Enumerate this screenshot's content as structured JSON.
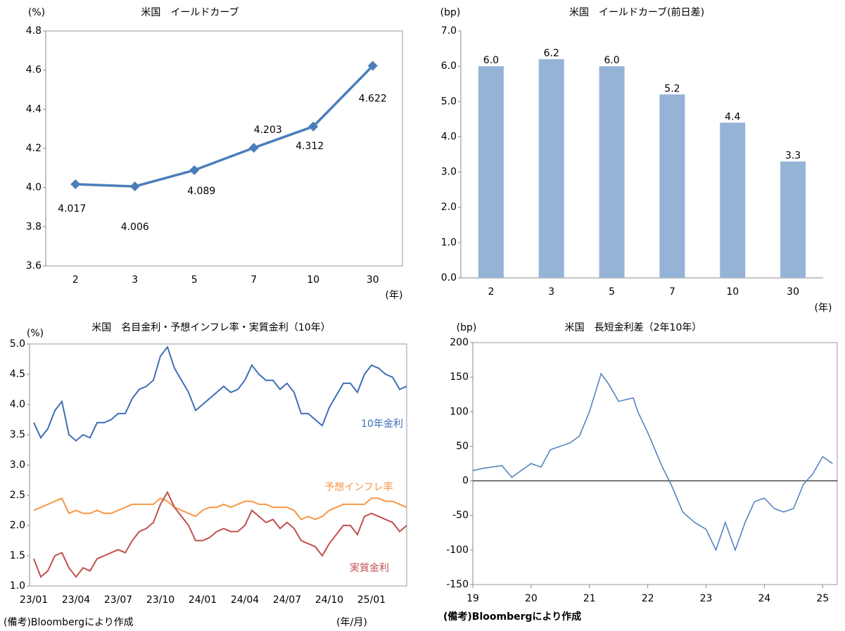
{
  "chart_data": [
    {
      "type": "line",
      "title": "米国　イールドカーブ",
      "y_label": "(%)",
      "x_label": "(年)",
      "categories": [
        "2",
        "3",
        "5",
        "7",
        "10",
        "30"
      ],
      "values": [
        4.017,
        4.006,
        4.089,
        4.203,
        4.312,
        4.622
      ],
      "color": "#4a7ebb",
      "ylim": [
        3.6,
        4.8
      ],
      "yticks": [
        3.6,
        3.8,
        {
          "value": 4.0,
          "label": "4.0"
        },
        4.2,
        4.4,
        4.6,
        4.8
      ],
      "grid": false
    },
    {
      "type": "bar",
      "title": "米国　イールドカーブ(前日差)",
      "y_label": "(bp)",
      "x_label": "(年)",
      "categories": [
        "2",
        "3",
        "5",
        "7",
        "10",
        "30"
      ],
      "values": [
        6.0,
        6.2,
        6.0,
        5.2,
        4.4,
        3.3
      ],
      "value_labels": [
        "6.0",
        "6.2",
        "6.0",
        "5.2",
        "4.4",
        "3.3"
      ],
      "color": "#95b3d7",
      "ylim": [
        0,
        7
      ],
      "yticks": [
        {
          "value": 0,
          "label": "0.0"
        },
        {
          "value": 1,
          "label": "1.0"
        },
        {
          "value": 2,
          "label": "2.0"
        },
        {
          "value": 3,
          "label": "3.0"
        },
        {
          "value": 4,
          "label": "4.0"
        },
        {
          "value": 5,
          "label": "5.0"
        },
        {
          "value": 6,
          "label": "6.0"
        },
        {
          "value": 7,
          "label": "7.0"
        }
      ],
      "grid": false
    },
    {
      "type": "line",
      "title": "米国　名目金利・予想インフレ率・実質金利（10年）",
      "y_label": "(%)",
      "x_label": "(年/月)",
      "note": "(備考)Bloombergにより作成",
      "categories": [
        "23/01",
        null,
        null,
        null,
        null,
        null,
        "23/04",
        null,
        null,
        null,
        null,
        null,
        "23/07",
        null,
        null,
        null,
        null,
        null,
        "23/10",
        null,
        null,
        null,
        null,
        null,
        "24/01",
        null,
        null,
        null,
        null,
        null,
        "24/04",
        null,
        null,
        null,
        null,
        null,
        "24/07",
        null,
        null,
        null,
        null,
        null,
        "24/10",
        null,
        null,
        null,
        null,
        null,
        "25/01",
        null,
        null,
        null,
        null,
        null
      ],
      "series": [
        {
          "name": "10年金利",
          "color": "#3f6fb5",
          "values": [
            3.7,
            3.45,
            3.6,
            3.9,
            4.05,
            3.5,
            3.4,
            3.5,
            3.45,
            3.7,
            3.7,
            3.75,
            3.85,
            3.85,
            4.1,
            4.25,
            4.3,
            4.4,
            4.8,
            4.95,
            4.6,
            4.4,
            4.2,
            3.9,
            4.0,
            4.1,
            4.2,
            4.3,
            4.2,
            4.25,
            4.4,
            4.65,
            4.5,
            4.4,
            4.4,
            4.25,
            4.35,
            4.2,
            3.85,
            3.85,
            3.75,
            3.65,
            3.95,
            4.15,
            4.35,
            4.35,
            4.2,
            4.5,
            4.65,
            4.6,
            4.5,
            4.45,
            4.25,
            4.3
          ]
        },
        {
          "name": "予想インフレ率",
          "color": "#f79646",
          "values": [
            2.25,
            2.3,
            2.35,
            2.4,
            2.45,
            2.2,
            2.25,
            2.2,
            2.2,
            2.25,
            2.2,
            2.2,
            2.25,
            2.3,
            2.35,
            2.35,
            2.35,
            2.35,
            2.45,
            2.4,
            2.3,
            2.25,
            2.2,
            2.15,
            2.25,
            2.3,
            2.3,
            2.35,
            2.3,
            2.35,
            2.4,
            2.4,
            2.35,
            2.35,
            2.3,
            2.3,
            2.3,
            2.25,
            2.1,
            2.15,
            2.1,
            2.15,
            2.25,
            2.3,
            2.35,
            2.35,
            2.35,
            2.35,
            2.45,
            2.45,
            2.4,
            2.4,
            2.35,
            2.3
          ]
        },
        {
          "name": "実質金利",
          "color": "#c0504d",
          "values": [
            1.45,
            1.15,
            1.25,
            1.5,
            1.55,
            1.3,
            1.15,
            1.3,
            1.25,
            1.45,
            1.5,
            1.55,
            1.6,
            1.55,
            1.75,
            1.9,
            1.95,
            2.05,
            2.35,
            2.55,
            2.3,
            2.15,
            2.0,
            1.75,
            1.75,
            1.8,
            1.9,
            1.95,
            1.9,
            1.9,
            2.0,
            2.25,
            2.15,
            2.05,
            2.1,
            1.95,
            2.05,
            1.95,
            1.75,
            1.7,
            1.65,
            1.5,
            1.7,
            1.85,
            2.0,
            2.0,
            1.85,
            2.15,
            2.2,
            2.15,
            2.1,
            2.05,
            1.9,
            2.0
          ]
        }
      ],
      "ylim": [
        1.0,
        5.0
      ],
      "yticks": [
        {
          "value": 1.0,
          "label": "1.0"
        },
        1.5,
        {
          "value": 2.0,
          "label": "2.0"
        },
        2.5,
        {
          "value": 3.0,
          "label": "3.0"
        },
        3.5,
        {
          "value": 4.0,
          "label": "4.0"
        },
        4.5,
        {
          "value": 5.0,
          "label": "5.0"
        }
      ],
      "grid": false
    },
    {
      "type": "line",
      "title": "米国　長短金利差（2年10年）",
      "y_label": "(bp)",
      "note": "(備考)Bloombergにより作成",
      "x": [
        2019.0,
        2019.17,
        2019.33,
        2019.5,
        2019.67,
        2019.83,
        2020.0,
        2020.17,
        2020.33,
        2020.5,
        2020.67,
        2020.83,
        2021.0,
        2021.2,
        2021.33,
        2021.5,
        2021.75,
        2021.83,
        2022.0,
        2022.25,
        2022.4,
        2022.6,
        2022.8,
        2023.0,
        2023.17,
        2023.33,
        2023.5,
        2023.67,
        2023.83,
        2024.0,
        2024.17,
        2024.33,
        2024.5,
        2024.67,
        2024.83,
        2025.0,
        2025.17
      ],
      "values": [
        15,
        18,
        20,
        22,
        5,
        15,
        25,
        20,
        45,
        50,
        55,
        65,
        100,
        155,
        140,
        115,
        120,
        100,
        70,
        20,
        -5,
        -45,
        -60,
        -70,
        -100,
        -60,
        -100,
        -60,
        -30,
        -25,
        -40,
        -45,
        -40,
        -5,
        10,
        35,
        25
      ],
      "color": "#4a7ebb",
      "xlim": [
        2019,
        2025.25
      ],
      "xticks": [
        {
          "value": 2019,
          "label": "19"
        },
        {
          "value": 2020,
          "label": "20"
        },
        {
          "value": 2021,
          "label": "21"
        },
        {
          "value": 2022,
          "label": "22"
        },
        {
          "value": 2023,
          "label": "23"
        },
        {
          "value": 2024,
          "label": "24"
        },
        {
          "value": 2025,
          "label": "25"
        }
      ],
      "ylim": [
        -150,
        200
      ],
      "yticks": [
        -150,
        -100,
        -50,
        0,
        50,
        100,
        150,
        200
      ],
      "grid": false
    }
  ]
}
